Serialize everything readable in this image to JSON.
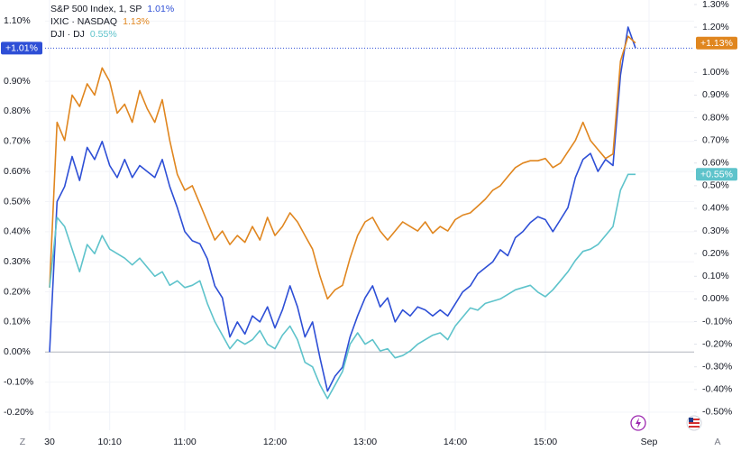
{
  "chart_data": {
    "type": "line",
    "x": [
      0,
      5,
      10,
      15,
      20,
      25,
      30,
      35,
      40,
      45,
      50,
      55,
      60,
      65,
      70,
      75,
      80,
      85,
      90,
      95,
      100,
      105,
      110,
      115,
      120,
      125,
      130,
      135,
      140,
      145,
      150,
      155,
      160,
      165,
      170,
      175,
      180,
      185,
      190,
      195,
      200,
      205,
      210,
      215,
      220,
      225,
      230,
      235,
      240,
      245,
      250,
      255,
      260,
      265,
      270,
      275,
      280,
      285,
      290,
      295,
      300,
      305,
      310,
      315,
      320,
      325,
      330,
      335,
      340,
      345,
      350,
      355,
      360,
      365,
      370,
      375,
      380,
      385,
      390
    ],
    "xlim": [
      -3,
      429
    ],
    "xticks": [
      {
        "value": 0,
        "label": "30"
      },
      {
        "value": 40,
        "label": "10:10"
      },
      {
        "value": 90,
        "label": "11:00"
      },
      {
        "value": 150,
        "label": "12:00"
      },
      {
        "value": 210,
        "label": "13:00"
      },
      {
        "value": 270,
        "label": "14:00"
      },
      {
        "value": 330,
        "label": "15:00"
      },
      {
        "value": 399,
        "label": "Sep"
      }
    ],
    "ylim": [
      -0.26,
      1.17
    ],
    "yticks": [
      {
        "value": 1.1,
        "label": "1.10%"
      },
      {
        "value": 0.9,
        "label": "0.90%"
      },
      {
        "value": 0.8,
        "label": "0.80%"
      },
      {
        "value": 0.7,
        "label": "0.70%"
      },
      {
        "value": 0.6,
        "label": "0.60%"
      },
      {
        "value": 0.5,
        "label": "0.50%"
      },
      {
        "value": 0.4,
        "label": "0.40%"
      },
      {
        "value": 0.3,
        "label": "0.30%"
      },
      {
        "value": 0.2,
        "label": "0.20%"
      },
      {
        "value": 0.1,
        "label": "0.10%"
      },
      {
        "value": 0,
        "label": "0.00%"
      },
      {
        "value": -0.1,
        "label": "-0.10%"
      },
      {
        "value": -0.2,
        "label": "-0.20%"
      }
    ],
    "y2lim": [
      -0.58,
      1.32
    ],
    "y2ticks": [
      {
        "value": 1.3,
        "label": "1.30%"
      },
      {
        "value": 1.2,
        "label": "1.20%"
      },
      {
        "value": 1.0,
        "label": "1.00%"
      },
      {
        "value": 0.9,
        "label": "0.90%"
      },
      {
        "value": 0.8,
        "label": "0.80%"
      },
      {
        "value": 0.7,
        "label": "0.70%"
      },
      {
        "value": 0.6,
        "label": "0.60%"
      },
      {
        "value": 0.5,
        "label": "0.50%"
      },
      {
        "value": 0.4,
        "label": "0.40%"
      },
      {
        "value": 0.3,
        "label": "0.30%"
      },
      {
        "value": 0.2,
        "label": "0.20%"
      },
      {
        "value": 0.1,
        "label": "0.10%"
      },
      {
        "value": 0,
        "label": "0.00%"
      },
      {
        "value": -0.1,
        "label": "-0.10%"
      },
      {
        "value": -0.2,
        "label": "-0.20%"
      },
      {
        "value": -0.3,
        "label": "-0.30%"
      },
      {
        "value": -0.4,
        "label": "-0.40%"
      },
      {
        "value": -0.5,
        "label": "-0.50%"
      }
    ],
    "grid": true,
    "series": [
      {
        "name": "S&P 500 Index, 1, SP",
        "color": "#2e4fd6",
        "axis": "y",
        "last_label": "1.01%",
        "badge_label": "+1.01%",
        "price_line": true,
        "values": [
          0.0,
          0.5,
          0.55,
          0.65,
          0.57,
          0.68,
          0.64,
          0.7,
          0.62,
          0.58,
          0.64,
          0.58,
          0.62,
          0.6,
          0.58,
          0.64,
          0.55,
          0.48,
          0.4,
          0.37,
          0.36,
          0.31,
          0.22,
          0.18,
          0.05,
          0.1,
          0.06,
          0.12,
          0.1,
          0.15,
          0.08,
          0.14,
          0.22,
          0.15,
          0.05,
          0.1,
          -0.02,
          -0.13,
          -0.08,
          -0.05,
          0.05,
          0.12,
          0.18,
          0.22,
          0.15,
          0.18,
          0.1,
          0.14,
          0.12,
          0.15,
          0.14,
          0.12,
          0.14,
          0.12,
          0.16,
          0.2,
          0.22,
          0.26,
          0.28,
          0.3,
          0.34,
          0.32,
          0.38,
          0.4,
          0.43,
          0.45,
          0.44,
          0.4,
          0.44,
          0.48,
          0.58,
          0.64,
          0.66,
          0.6,
          0.64,
          0.62,
          0.92,
          1.08,
          1.01
        ]
      },
      {
        "name": "IXIC · NASDAQ",
        "color": "#e0861f",
        "axis": "y2",
        "last_label": "1.13%",
        "badge_label": "+1.13%",
        "price_line": false,
        "values": [
          0.05,
          0.78,
          0.7,
          0.9,
          0.85,
          0.95,
          0.9,
          1.02,
          0.96,
          0.82,
          0.86,
          0.78,
          0.92,
          0.84,
          0.78,
          0.88,
          0.7,
          0.55,
          0.48,
          0.5,
          0.42,
          0.34,
          0.26,
          0.3,
          0.24,
          0.28,
          0.25,
          0.32,
          0.26,
          0.36,
          0.28,
          0.32,
          0.38,
          0.34,
          0.28,
          0.22,
          0.1,
          0.0,
          0.04,
          0.06,
          0.18,
          0.28,
          0.34,
          0.36,
          0.3,
          0.26,
          0.3,
          0.34,
          0.32,
          0.3,
          0.34,
          0.29,
          0.32,
          0.3,
          0.35,
          0.37,
          0.38,
          0.41,
          0.44,
          0.48,
          0.5,
          0.54,
          0.58,
          0.6,
          0.61,
          0.61,
          0.62,
          0.58,
          0.6,
          0.65,
          0.7,
          0.78,
          0.7,
          0.66,
          0.62,
          0.64,
          1.05,
          1.16,
          1.13
        ]
      },
      {
        "name": "DJI · DJ",
        "color": "#5ec3cb",
        "axis": "y2",
        "last_label": "0.55%",
        "badge_label": "+0.55%",
        "price_line": false,
        "values": [
          0.05,
          0.36,
          0.32,
          0.22,
          0.12,
          0.24,
          0.2,
          0.28,
          0.22,
          0.2,
          0.18,
          0.15,
          0.18,
          0.14,
          0.1,
          0.12,
          0.06,
          0.08,
          0.05,
          0.06,
          0.08,
          -0.02,
          -0.1,
          -0.16,
          -0.22,
          -0.18,
          -0.2,
          -0.18,
          -0.14,
          -0.2,
          -0.22,
          -0.16,
          -0.12,
          -0.18,
          -0.28,
          -0.3,
          -0.38,
          -0.44,
          -0.38,
          -0.32,
          -0.2,
          -0.15,
          -0.2,
          -0.18,
          -0.23,
          -0.22,
          -0.26,
          -0.25,
          -0.23,
          -0.2,
          -0.18,
          -0.16,
          -0.15,
          -0.18,
          -0.12,
          -0.08,
          -0.04,
          -0.05,
          -0.02,
          -0.01,
          0.0,
          0.02,
          0.04,
          0.05,
          0.06,
          0.03,
          0.01,
          0.04,
          0.08,
          0.12,
          0.17,
          0.21,
          0.22,
          0.24,
          0.28,
          0.32,
          0.48,
          0.55,
          0.55
        ]
      }
    ]
  },
  "ui": {
    "left_button": "Z",
    "right_button": "A"
  }
}
